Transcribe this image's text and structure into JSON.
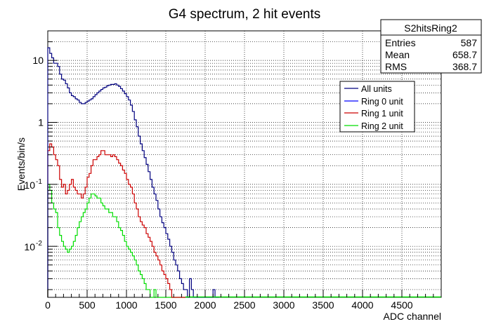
{
  "chart_data": {
    "type": "line",
    "title": "G4 spectrum, 2 hit events",
    "xlabel": "ADC channel",
    "ylabel": "Events/bin/s",
    "xlim": [
      0,
      5000
    ],
    "ylim": [
      0.0015,
      30
    ],
    "yscale": "log",
    "grid": true,
    "x_ticks": [
      "0",
      "500",
      "1000",
      "1500",
      "2000",
      "2500",
      "3000",
      "3500",
      "4000",
      "4500"
    ],
    "y_ticks": [
      {
        "value": 10,
        "label": "10"
      },
      {
        "value": 1,
        "label": "1"
      },
      {
        "value": 0.1,
        "label": "10",
        "exp": "-1"
      },
      {
        "value": 0.01,
        "label": "10",
        "exp": "-2"
      }
    ],
    "bin_width": 25,
    "stats": {
      "title": "S2hitsRing2",
      "rows": [
        {
          "label": "Entries",
          "value": "587"
        },
        {
          "label": "Mean",
          "value": "658.7"
        },
        {
          "label": "RMS",
          "value": "368.7"
        }
      ]
    },
    "legend_position": "top-right",
    "series": [
      {
        "name": "All units",
        "color": "#00007f",
        "values": [
          16,
          13,
          11,
          9,
          9,
          8,
          6,
          5,
          4.8,
          4.2,
          3.6,
          3,
          2.7,
          2.6,
          2.4,
          2.3,
          2.1,
          2.0,
          2.0,
          2.1,
          2.2,
          2.3,
          2.4,
          2.6,
          2.8,
          3,
          3.2,
          3.4,
          3.6,
          3.7,
          3.9,
          4.0,
          4.1,
          4.1,
          4.2,
          4.0,
          3.8,
          3.5,
          3.2,
          2.9,
          2.6,
          2.3,
          1.9,
          1.5,
          1.1,
          0.85,
          0.6,
          0.45,
          0.35,
          0.27,
          0.21,
          0.16,
          0.12,
          0.09,
          0.07,
          0.055,
          0.04,
          0.03,
          0.024,
          0.02,
          0.016,
          0.013,
          0.01,
          0.008,
          0.006,
          0.005,
          0.004,
          0.003,
          0.0025,
          0.002,
          0.002,
          0.0015,
          0.003,
          0.002,
          0.0015,
          0.0015,
          0.0015,
          0.0015,
          0.0015,
          0.0015,
          0.0015,
          0.0015,
          0.0015,
          0.0015,
          0.002,
          0.0015,
          0.0015
        ]
      },
      {
        "name": "Ring 0 unit",
        "color": "#0000ff",
        "values": []
      },
      {
        "name": "Ring 1 unit",
        "color": "#cc0000",
        "values": [
          0.35,
          0.45,
          0.4,
          0.3,
          0.25,
          0.2,
          0.12,
          0.09,
          0.1,
          0.07,
          0.08,
          0.1,
          0.12,
          0.09,
          0.08,
          0.07,
          0.07,
          0.06,
          0.07,
          0.09,
          0.13,
          0.15,
          0.2,
          0.25,
          0.25,
          0.28,
          0.3,
          0.35,
          0.35,
          0.3,
          0.3,
          0.3,
          0.28,
          0.3,
          0.28,
          0.25,
          0.22,
          0.2,
          0.17,
          0.15,
          0.12,
          0.1,
          0.09,
          0.07,
          0.05,
          0.04,
          0.03,
          0.025,
          0.022,
          0.02,
          0.016,
          0.014,
          0.012,
          0.01,
          0.008,
          0.007,
          0.006,
          0.005,
          0.004,
          0.0035,
          0.003,
          0.0025,
          0.002,
          0.0015,
          0.0015,
          0.0015,
          0.0015,
          0.0015,
          0.0015,
          0.0015
        ]
      },
      {
        "name": "Ring 2 unit",
        "color": "#00dd00",
        "values": [
          0.1,
          0.08,
          0.05,
          0.04,
          0.035,
          0.02,
          0.015,
          0.012,
          0.01,
          0.009,
          0.008,
          0.009,
          0.01,
          0.012,
          0.015,
          0.02,
          0.025,
          0.03,
          0.035,
          0.04,
          0.05,
          0.06,
          0.07,
          0.07,
          0.065,
          0.06,
          0.06,
          0.05,
          0.045,
          0.04,
          0.04,
          0.035,
          0.035,
          0.03,
          0.03,
          0.025,
          0.02,
          0.018,
          0.015,
          0.012,
          0.01,
          0.009,
          0.008,
          0.007,
          0.006,
          0.005,
          0.004,
          0.0035,
          0.003,
          0.0025,
          0.002,
          0.002,
          0.0015,
          0.0015,
          0.002,
          0.0015,
          0.0015,
          0.0015,
          0.0015,
          0.0015,
          0.0015,
          0.0015,
          0.0015,
          0.0015,
          0.0015,
          0.0015,
          0.0015,
          0.0015,
          0.0015,
          0.0015
        ]
      }
    ]
  }
}
